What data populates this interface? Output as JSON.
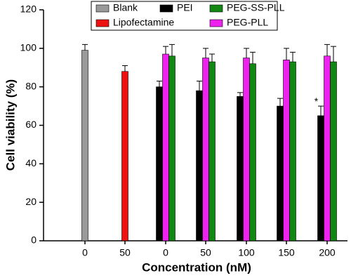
{
  "chart_data": {
    "type": "bar",
    "categories": [
      "0",
      "50",
      "0",
      "50",
      "100",
      "150",
      "200"
    ],
    "series": [
      {
        "name": "Blank",
        "color": "#999999",
        "values": [
          99,
          null,
          null,
          null,
          null,
          null,
          null
        ],
        "errors": [
          3,
          null,
          null,
          null,
          null,
          null,
          null
        ]
      },
      {
        "name": "Lipofectamine",
        "color": "#ee1111",
        "values": [
          null,
          88,
          null,
          null,
          null,
          null,
          null
        ],
        "errors": [
          null,
          3,
          null,
          null,
          null,
          null,
          null
        ]
      },
      {
        "name": "PEI",
        "color": "#000000",
        "values": [
          null,
          null,
          80,
          78,
          75,
          70,
          65
        ],
        "errors": [
          null,
          null,
          3,
          5,
          2,
          4,
          5
        ]
      },
      {
        "name": "PEG-PLL",
        "color": "#ee22ee",
        "values": [
          null,
          null,
          97,
          95,
          95,
          94,
          96
        ],
        "errors": [
          null,
          null,
          4,
          5,
          5,
          6,
          6
        ]
      },
      {
        "name": "PEG-SS-PLL",
        "color": "#118811",
        "values": [
          null,
          null,
          96,
          93,
          92,
          93,
          93
        ],
        "errors": [
          null,
          null,
          6,
          4,
          6,
          5,
          8
        ]
      }
    ],
    "annotation": "*",
    "xlabel": "Concentration (nM)",
    "ylabel": "Cell viability (%)",
    "ylim": [
      0,
      120
    ],
    "yticks": [
      0,
      20,
      40,
      60,
      80,
      100,
      120
    ]
  }
}
